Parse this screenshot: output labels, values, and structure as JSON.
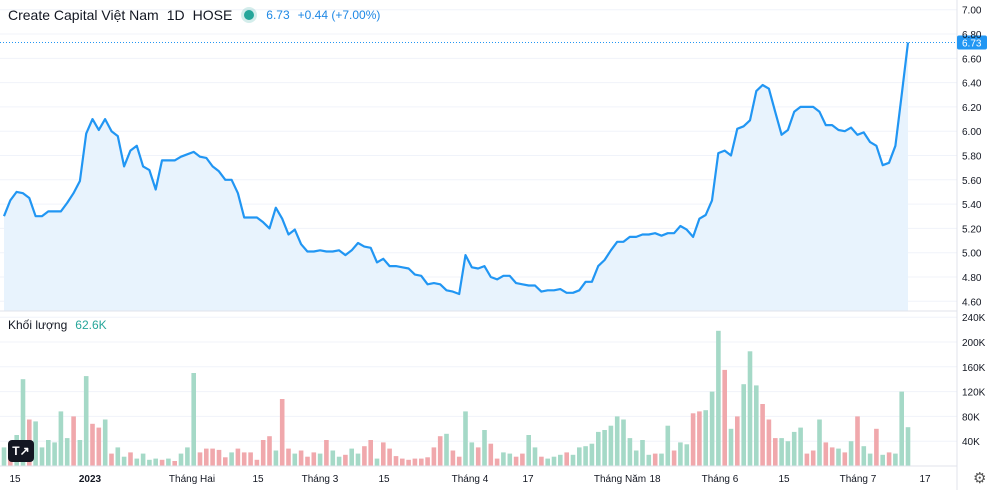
{
  "header": {
    "name": "Create Capital Việt Nam",
    "interval": "1D",
    "exchange": "HOSE",
    "last": "6.73",
    "change": "+0.44 (+7.00%)"
  },
  "volume_panel": {
    "label": "Khối lượng",
    "value": "62.6K"
  },
  "logo_text": "T↗",
  "colors": {
    "line": "#2196f3",
    "area": "#e8f3fd",
    "vol_up": "#a5d9c7",
    "vol_down": "#f0a8ac",
    "last_tag": "#2196f3"
  },
  "chart_data": {
    "type": "line",
    "price_axis": {
      "ticks": [
        "7.00",
        "6.80",
        "6.60",
        "6.40",
        "6.20",
        "6.00",
        "5.80",
        "5.60",
        "5.40",
        "5.20",
        "5.00",
        "4.80",
        "4.60"
      ],
      "range": [
        4.52,
        7.08
      ]
    },
    "last_price_label": "6.73",
    "volume_axis": {
      "ticks": [
        "240K",
        "200K",
        "160K",
        "120K",
        "80K",
        "40K"
      ],
      "range": [
        0,
        250000
      ]
    },
    "x_labels": [
      "15",
      "2023",
      "Tháng Hai",
      "15",
      "Tháng 3",
      "15",
      "Tháng 4",
      "17",
      "Tháng Năm",
      "18",
      "Tháng 6",
      "15",
      "Tháng 7",
      "17"
    ],
    "price": [
      5.3,
      5.43,
      5.5,
      5.49,
      5.45,
      5.3,
      5.3,
      5.34,
      5.34,
      5.34,
      5.41,
      5.49,
      5.59,
      5.98,
      6.1,
      6.01,
      6.1,
      6.0,
      5.96,
      5.71,
      5.84,
      5.88,
      5.71,
      5.68,
      5.52,
      5.76,
      5.76,
      5.76,
      5.79,
      5.81,
      5.83,
      5.79,
      5.78,
      5.71,
      5.67,
      5.6,
      5.6,
      5.49,
      5.29,
      5.29,
      5.29,
      5.25,
      5.2,
      5.37,
      5.28,
      5.15,
      5.19,
      5.07,
      5.01,
      5.01,
      5.02,
      5.01,
      5.01,
      5.02,
      4.98,
      5.02,
      5.08,
      5.05,
      5.04,
      4.92,
      4.95,
      4.89,
      4.89,
      4.88,
      4.87,
      4.82,
      4.81,
      4.74,
      4.75,
      4.74,
      4.69,
      4.68,
      4.66,
      4.98,
      4.88,
      4.87,
      4.89,
      4.8,
      4.78,
      4.81,
      4.81,
      4.75,
      4.74,
      4.73,
      4.73,
      4.68,
      4.69,
      4.69,
      4.7,
      4.67,
      4.67,
      4.69,
      4.76,
      4.76,
      4.89,
      4.94,
      5.02,
      5.09,
      5.09,
      5.13,
      5.13,
      5.15,
      5.15,
      5.16,
      5.14,
      5.16,
      5.16,
      5.22,
      5.19,
      5.13,
      5.28,
      5.31,
      5.43,
      5.82,
      5.84,
      5.8,
      6.02,
      6.04,
      6.09,
      6.33,
      6.38,
      6.35,
      6.16,
      5.97,
      6.01,
      6.16,
      6.2,
      6.2,
      6.2,
      6.16,
      6.05,
      6.05,
      6.01,
      6.0,
      6.03,
      5.97,
      5.99,
      5.91,
      5.88,
      5.72,
      5.74,
      5.88,
      6.3,
      6.73
    ],
    "volume": [
      30000,
      20000,
      50000,
      140000,
      75000,
      72000,
      30000,
      42000,
      38000,
      88000,
      45000,
      80000,
      42000,
      145000,
      68000,
      62000,
      75000,
      20000,
      30000,
      15000,
      22000,
      12000,
      20000,
      10000,
      12000,
      10000,
      12000,
      8000,
      20000,
      30000,
      150000,
      22000,
      28000,
      28000,
      26000,
      14000,
      22000,
      28000,
      22000,
      22000,
      10000,
      42000,
      48000,
      25000,
      108000,
      28000,
      20000,
      25000,
      15000,
      22000,
      20000,
      42000,
      25000,
      15000,
      18000,
      28000,
      20000,
      32000,
      42000,
      12000,
      38000,
      28000,
      16000,
      12000,
      10000,
      12000,
      12000,
      14000,
      30000,
      48000,
      52000,
      25000,
      15000,
      88000,
      38000,
      30000,
      58000,
      36000,
      12000,
      22000,
      20000,
      15000,
      20000,
      50000,
      30000,
      15000,
      12000,
      15000,
      18000,
      22000,
      18000,
      30000,
      32000,
      36000,
      55000,
      58000,
      65000,
      80000,
      75000,
      45000,
      25000,
      42000,
      18000,
      20000,
      20000,
      65000,
      25000,
      38000,
      35000,
      85000,
      88000,
      90000,
      120000,
      218000,
      155000,
      60000,
      80000,
      132000,
      185000,
      130000,
      100000,
      75000,
      45000,
      45000,
      40000,
      55000,
      62000,
      20000,
      25000,
      75000,
      38000,
      30000,
      28000,
      22000,
      40000,
      80000,
      32000,
      20000,
      60000,
      18000,
      22000,
      20000,
      120000,
      62600
    ],
    "volume_dir": [
      1,
      0,
      1,
      1,
      0,
      1,
      1,
      1,
      1,
      1,
      1,
      0,
      1,
      1,
      0,
      0,
      1,
      0,
      1,
      1,
      0,
      1,
      1,
      1,
      1,
      0,
      1,
      0,
      1,
      1,
      1,
      0,
      0,
      0,
      0,
      0,
      1,
      0,
      0,
      0,
      0,
      0,
      0,
      1,
      0,
      0,
      1,
      0,
      0,
      0,
      1,
      0,
      1,
      1,
      0,
      1,
      1,
      0,
      0,
      1,
      0,
      0,
      0,
      0,
      0,
      0,
      0,
      0,
      0,
      0,
      1,
      0,
      0,
      1,
      1,
      0,
      1,
      0,
      0,
      1,
      1,
      0,
      0,
      1,
      1,
      0,
      1,
      1,
      1,
      0,
      1,
      1,
      1,
      1,
      1,
      1,
      1,
      1,
      1,
      1,
      1,
      1,
      1,
      0,
      1,
      1,
      0,
      1,
      1,
      0,
      0,
      1,
      1,
      1,
      0,
      1,
      0,
      1,
      1,
      1,
      0,
      0,
      0,
      1,
      1,
      1,
      1,
      0,
      0,
      1,
      0,
      0,
      1,
      0,
      1,
      0,
      1,
      1,
      0,
      1,
      0,
      1,
      1,
      1
    ]
  }
}
